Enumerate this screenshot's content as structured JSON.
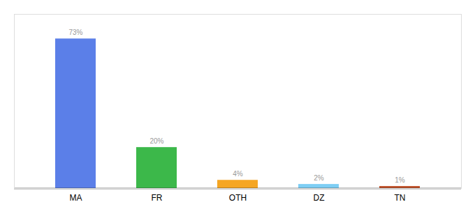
{
  "chart_data": {
    "type": "bar",
    "categories": [
      "MA",
      "FR",
      "OTH",
      "DZ",
      "TN"
    ],
    "values": [
      73,
      20,
      4,
      2,
      1
    ],
    "value_labels": [
      "73%",
      "20%",
      "4%",
      "2%",
      "1%"
    ],
    "data_labels": true,
    "colors": [
      "#5b7fe8",
      "#3cb84a",
      "#f5a623",
      "#7ecef4",
      "#c0522b"
    ],
    "ylim": [
      0,
      85
    ],
    "tick_labels": "x",
    "grid": false
  }
}
